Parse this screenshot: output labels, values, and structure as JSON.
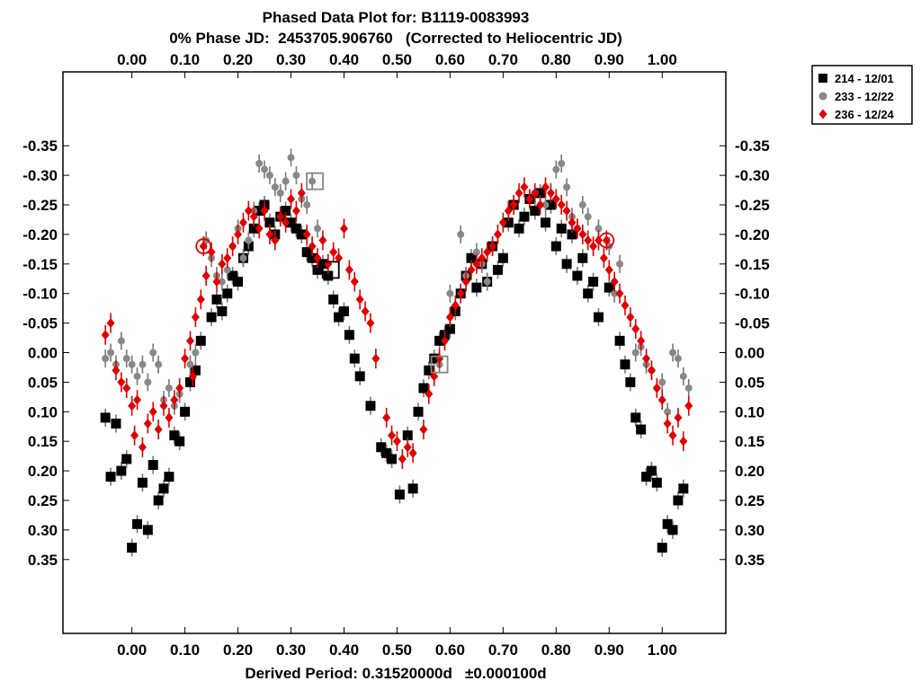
{
  "chart_data": {
    "type": "scatter",
    "title": "Phased Data Plot for: B1119-0083993",
    "subtitle": "0% Phase JD:  2453705.906760   (Corrected to Heliocentric JD)",
    "xlabel": "Derived Period: 0.31520000d   ±0.000100d",
    "ylabel": "",
    "xlim": [
      -0.13,
      1.12
    ],
    "ylim": [
      0.475,
      -0.475
    ],
    "y_reversed": true,
    "grid": false,
    "legend_position": "top-right-outside",
    "x_ticks": [
      "0.00",
      "0.10",
      "0.20",
      "0.30",
      "0.40",
      "0.50",
      "0.60",
      "0.70",
      "0.80",
      "0.90",
      "1.00"
    ],
    "x_tick_values": [
      0,
      0.1,
      0.2,
      0.3,
      0.4,
      0.5,
      0.6,
      0.7,
      0.8,
      0.9,
      1.0
    ],
    "y_ticks": [
      "-0.35",
      "-0.30",
      "-0.25",
      "-0.20",
      "-0.15",
      "-0.10",
      "-0.05",
      "0.00",
      "0.05",
      "0.10",
      "0.15",
      "0.20",
      "0.25",
      "0.30",
      "0.35"
    ],
    "y_tick_values": [
      -0.35,
      -0.3,
      -0.25,
      -0.2,
      -0.15,
      -0.1,
      -0.05,
      0,
      0.05,
      0.1,
      0.15,
      0.2,
      0.25,
      0.3,
      0.35
    ],
    "series": [
      {
        "name": "214 - 12/01",
        "marker": "square",
        "color": "#000000",
        "points": [
          [
            -0.05,
            0.11
          ],
          [
            -0.04,
            0.21
          ],
          [
            -0.03,
            0.12
          ],
          [
            -0.02,
            0.2
          ],
          [
            -0.01,
            0.18
          ],
          [
            0.0,
            0.33
          ],
          [
            0.01,
            0.29
          ],
          [
            0.02,
            0.22
          ],
          [
            0.03,
            0.3
          ],
          [
            0.04,
            0.19
          ],
          [
            0.05,
            0.25
          ],
          [
            0.06,
            0.23
          ],
          [
            0.07,
            0.21
          ],
          [
            0.08,
            0.14
          ],
          [
            0.09,
            0.15
          ],
          [
            0.1,
            0.1
          ],
          [
            0.11,
            0.05
          ],
          [
            0.12,
            0.03
          ],
          [
            0.13,
            -0.02
          ],
          [
            0.15,
            -0.06
          ],
          [
            0.16,
            -0.09
          ],
          [
            0.17,
            -0.07
          ],
          [
            0.18,
            -0.1
          ],
          [
            0.19,
            -0.13
          ],
          [
            0.2,
            -0.12
          ],
          [
            0.21,
            -0.16
          ],
          [
            0.22,
            -0.18
          ],
          [
            0.23,
            -0.21
          ],
          [
            0.24,
            -0.24
          ],
          [
            0.25,
            -0.25
          ],
          [
            0.26,
            -0.22
          ],
          [
            0.27,
            -0.2
          ],
          [
            0.28,
            -0.23
          ],
          [
            0.29,
            -0.24
          ],
          [
            0.3,
            -0.22
          ],
          [
            0.31,
            -0.21
          ],
          [
            0.32,
            -0.2
          ],
          [
            0.33,
            -0.17
          ],
          [
            0.34,
            -0.16
          ],
          [
            0.35,
            -0.14
          ],
          [
            0.36,
            -0.15
          ],
          [
            0.37,
            -0.13
          ],
          [
            0.38,
            -0.09
          ],
          [
            0.39,
            -0.06
          ],
          [
            0.4,
            -0.07
          ],
          [
            0.41,
            -0.03
          ],
          [
            0.42,
            0.01
          ],
          [
            0.43,
            0.04
          ],
          [
            0.45,
            0.09
          ],
          [
            0.47,
            0.16
          ],
          [
            0.48,
            0.17
          ],
          [
            0.49,
            0.18
          ],
          [
            0.505,
            0.24
          ],
          [
            0.52,
            0.14
          ],
          [
            0.53,
            0.23
          ],
          [
            0.54,
            0.1
          ],
          [
            0.55,
            0.06
          ],
          [
            0.56,
            0.03
          ],
          [
            0.57,
            0.01
          ],
          [
            0.58,
            -0.02
          ],
          [
            0.59,
            -0.03
          ],
          [
            0.6,
            -0.04
          ],
          [
            0.61,
            -0.07
          ],
          [
            0.62,
            -0.1
          ],
          [
            0.63,
            -0.13
          ],
          [
            0.64,
            -0.16
          ],
          [
            0.65,
            -0.11
          ],
          [
            0.66,
            -0.15
          ],
          [
            0.67,
            -0.12
          ],
          [
            0.68,
            -0.18
          ],
          [
            0.69,
            -0.14
          ],
          [
            0.7,
            -0.16
          ],
          [
            0.71,
            -0.22
          ],
          [
            0.72,
            -0.25
          ],
          [
            0.73,
            -0.21
          ],
          [
            0.74,
            -0.23
          ],
          [
            0.75,
            -0.26
          ],
          [
            0.76,
            -0.24
          ],
          [
            0.77,
            -0.27
          ],
          [
            0.78,
            -0.22
          ],
          [
            0.79,
            -0.25
          ],
          [
            0.8,
            -0.18
          ],
          [
            0.81,
            -0.21
          ],
          [
            0.82,
            -0.15
          ],
          [
            0.83,
            -0.2
          ],
          [
            0.84,
            -0.13
          ],
          [
            0.85,
            -0.16
          ],
          [
            0.86,
            -0.1
          ],
          [
            0.87,
            -0.12
          ],
          [
            0.88,
            -0.06
          ],
          [
            0.9,
            -0.11
          ],
          [
            0.92,
            -0.02
          ],
          [
            0.93,
            0.02
          ],
          [
            0.94,
            0.05
          ],
          [
            0.95,
            0.11
          ],
          [
            0.96,
            0.13
          ],
          [
            0.97,
            0.21
          ],
          [
            0.98,
            0.2
          ],
          [
            0.99,
            0.22
          ],
          [
            1.0,
            0.33
          ],
          [
            1.01,
            0.29
          ],
          [
            1.02,
            0.3
          ],
          [
            1.03,
            0.25
          ],
          [
            1.04,
            0.23
          ]
        ]
      },
      {
        "name": "233 - 12/22",
        "marker": "circle",
        "color": "#888888",
        "points": [
          [
            -0.05,
            0.01
          ],
          [
            -0.04,
            0.0
          ],
          [
            -0.03,
            0.02
          ],
          [
            -0.02,
            -0.02
          ],
          [
            -0.01,
            0.01
          ],
          [
            0.0,
            0.02
          ],
          [
            0.01,
            0.04
          ],
          [
            0.02,
            0.02
          ],
          [
            0.03,
            0.05
          ],
          [
            0.04,
            0.0
          ],
          [
            0.05,
            0.02
          ],
          [
            0.06,
            0.08
          ],
          [
            0.07,
            0.06
          ],
          [
            0.08,
            0.09
          ],
          [
            0.09,
            0.07
          ],
          [
            0.11,
            0.02
          ],
          [
            0.12,
            0.0
          ],
          [
            0.14,
            -0.19
          ],
          [
            0.15,
            -0.16
          ],
          [
            0.16,
            -0.13
          ],
          [
            0.17,
            -0.12
          ],
          [
            0.18,
            -0.14
          ],
          [
            0.19,
            -0.18
          ],
          [
            0.2,
            -0.21
          ],
          [
            0.21,
            -0.16
          ],
          [
            0.22,
            -0.19
          ],
          [
            0.23,
            -0.24
          ],
          [
            0.24,
            -0.32
          ],
          [
            0.25,
            -0.31
          ],
          [
            0.26,
            -0.3
          ],
          [
            0.27,
            -0.28
          ],
          [
            0.28,
            -0.27
          ],
          [
            0.29,
            -0.29
          ],
          [
            0.3,
            -0.33
          ],
          [
            0.31,
            -0.3
          ],
          [
            0.32,
            -0.26
          ],
          [
            0.33,
            -0.25
          ],
          [
            0.34,
            -0.29
          ],
          [
            0.35,
            -0.21
          ],
          [
            0.58,
            0.02
          ],
          [
            0.6,
            -0.1
          ],
          [
            0.62,
            -0.2
          ],
          [
            0.63,
            -0.13
          ],
          [
            0.65,
            -0.17
          ],
          [
            0.66,
            -0.15
          ],
          [
            0.67,
            -0.12
          ],
          [
            0.76,
            -0.27
          ],
          [
            0.78,
            -0.25
          ],
          [
            0.8,
            -0.31
          ],
          [
            0.81,
            -0.32
          ],
          [
            0.82,
            -0.28
          ],
          [
            0.83,
            -0.23
          ],
          [
            0.84,
            -0.21
          ],
          [
            0.85,
            -0.25
          ],
          [
            0.86,
            -0.23
          ],
          [
            0.88,
            -0.21
          ],
          [
            0.9,
            -0.18
          ],
          [
            0.91,
            -0.1
          ],
          [
            0.92,
            -0.15
          ],
          [
            0.95,
            0.0
          ],
          [
            0.96,
            -0.01
          ],
          [
            0.97,
            0.02
          ],
          [
            0.98,
            0.03
          ],
          [
            0.99,
            0.06
          ],
          [
            1.0,
            0.05
          ],
          [
            1.01,
            0.1
          ],
          [
            1.02,
            0.0
          ],
          [
            1.03,
            0.01
          ],
          [
            1.04,
            0.04
          ],
          [
            1.05,
            0.06
          ]
        ]
      },
      {
        "name": "236 - 12/24",
        "marker": "diamond",
        "color": "#e00000",
        "points": [
          [
            -0.05,
            -0.03
          ],
          [
            -0.04,
            -0.05
          ],
          [
            -0.03,
            0.03
          ],
          [
            -0.02,
            0.05
          ],
          [
            -0.01,
            0.06
          ],
          [
            0.0,
            0.09
          ],
          [
            0.005,
            0.14
          ],
          [
            0.01,
            0.08
          ],
          [
            0.02,
            0.16
          ],
          [
            0.03,
            0.12
          ],
          [
            0.04,
            0.1
          ],
          [
            0.05,
            0.13
          ],
          [
            0.06,
            0.09
          ],
          [
            0.07,
            0.11
          ],
          [
            0.08,
            0.08
          ],
          [
            0.09,
            0.06
          ],
          [
            0.1,
            0.01
          ],
          [
            0.11,
            -0.02
          ],
          [
            0.115,
            0.04
          ],
          [
            0.12,
            -0.06
          ],
          [
            0.13,
            -0.09
          ],
          [
            0.135,
            -0.18
          ],
          [
            0.14,
            -0.13
          ],
          [
            0.15,
            -0.17
          ],
          [
            0.16,
            -0.12
          ],
          [
            0.17,
            -0.15
          ],
          [
            0.18,
            -0.16
          ],
          [
            0.19,
            -0.18
          ],
          [
            0.2,
            -0.2
          ],
          [
            0.21,
            -0.22
          ],
          [
            0.22,
            -0.24
          ],
          [
            0.23,
            -0.23
          ],
          [
            0.24,
            -0.21
          ],
          [
            0.25,
            -0.24
          ],
          [
            0.26,
            -0.2
          ],
          [
            0.27,
            -0.19
          ],
          [
            0.28,
            -0.23
          ],
          [
            0.29,
            -0.22
          ],
          [
            0.3,
            -0.26
          ],
          [
            0.31,
            -0.24
          ],
          [
            0.32,
            -0.27
          ],
          [
            0.33,
            -0.2
          ],
          [
            0.34,
            -0.18
          ],
          [
            0.35,
            -0.16
          ],
          [
            0.36,
            -0.19
          ],
          [
            0.37,
            -0.15
          ],
          [
            0.38,
            -0.17
          ],
          [
            0.39,
            -0.16
          ],
          [
            0.4,
            -0.21
          ],
          [
            0.41,
            -0.14
          ],
          [
            0.42,
            -0.12
          ],
          [
            0.43,
            -0.09
          ],
          [
            0.44,
            -0.07
          ],
          [
            0.45,
            -0.05
          ],
          [
            0.46,
            0.01
          ],
          [
            0.48,
            0.11
          ],
          [
            0.49,
            0.14
          ],
          [
            0.5,
            0.15
          ],
          [
            0.51,
            0.18
          ],
          [
            0.52,
            0.16
          ],
          [
            0.53,
            0.17
          ],
          [
            0.55,
            0.13
          ],
          [
            0.56,
            0.07
          ],
          [
            0.57,
            0.04
          ],
          [
            0.58,
            0.01
          ],
          [
            0.59,
            -0.02
          ],
          [
            0.6,
            -0.06
          ],
          [
            0.61,
            -0.08
          ],
          [
            0.62,
            -0.1
          ],
          [
            0.63,
            -0.12
          ],
          [
            0.64,
            -0.14
          ],
          [
            0.65,
            -0.15
          ],
          [
            0.66,
            -0.16
          ],
          [
            0.67,
            -0.17
          ],
          [
            0.68,
            -0.18
          ],
          [
            0.69,
            -0.2
          ],
          [
            0.7,
            -0.22
          ],
          [
            0.71,
            -0.24
          ],
          [
            0.72,
            -0.25
          ],
          [
            0.73,
            -0.27
          ],
          [
            0.74,
            -0.28
          ],
          [
            0.75,
            -0.26
          ],
          [
            0.76,
            -0.27
          ],
          [
            0.77,
            -0.25
          ],
          [
            0.78,
            -0.28
          ],
          [
            0.79,
            -0.27
          ],
          [
            0.8,
            -0.26
          ],
          [
            0.81,
            -0.25
          ],
          [
            0.82,
            -0.24
          ],
          [
            0.83,
            -0.22
          ],
          [
            0.84,
            -0.21
          ],
          [
            0.85,
            -0.2
          ],
          [
            0.86,
            -0.19
          ],
          [
            0.87,
            -0.18
          ],
          [
            0.88,
            -0.19
          ],
          [
            0.89,
            -0.16
          ],
          [
            0.895,
            -0.19
          ],
          [
            0.9,
            -0.14
          ],
          [
            0.91,
            -0.12
          ],
          [
            0.92,
            -0.1
          ],
          [
            0.93,
            -0.08
          ],
          [
            0.94,
            -0.06
          ],
          [
            0.95,
            -0.04
          ],
          [
            0.96,
            -0.02
          ],
          [
            0.97,
            0.01
          ],
          [
            0.98,
            0.03
          ],
          [
            0.99,
            0.06
          ],
          [
            1.0,
            0.08
          ],
          [
            1.01,
            0.12
          ],
          [
            1.02,
            0.14
          ],
          [
            1.03,
            0.11
          ],
          [
            1.04,
            0.15
          ],
          [
            1.05,
            0.09
          ]
        ]
      }
    ],
    "highlighted": [
      {
        "series": "214 - 12/01",
        "x": 0.375,
        "y": -0.14
      },
      {
        "series": "233 - 12/22",
        "x": 0.345,
        "y": -0.29
      },
      {
        "series": "233 - 12/22",
        "x": 0.58,
        "y": 0.02
      },
      {
        "series": "236 - 12/24",
        "x": 0.135,
        "y": -0.18
      },
      {
        "series": "236 - 12/24",
        "x": 0.895,
        "y": -0.19
      }
    ]
  }
}
